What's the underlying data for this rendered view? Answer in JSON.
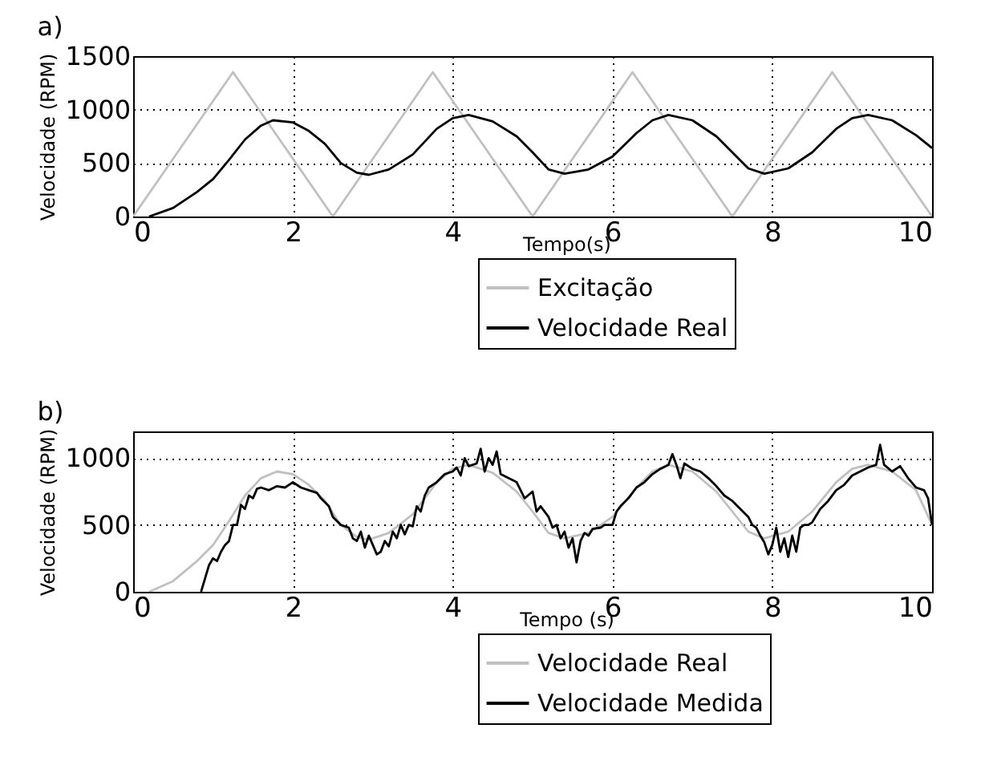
{
  "chart_data": [
    {
      "type": "line",
      "title": "a)",
      "xlabel": "Tempo(s)",
      "ylabel": "Velocidade (RPM)",
      "xlim": [
        0,
        10
      ],
      "xticks": [
        0,
        2,
        4,
        6,
        8,
        10
      ],
      "ylim": [
        0,
        1500
      ],
      "yticks": [
        0,
        500,
        1000,
        1500
      ],
      "grid": true,
      "legend": "bottom right",
      "series": [
        {
          "name": "Excitação",
          "color": "#c0c0c0",
          "x": [
            0,
            1.25,
            2.5,
            3.75,
            5,
            6.25,
            7.5,
            8.75,
            10
          ],
          "values": [
            0,
            1350,
            0,
            1350,
            0,
            1350,
            0,
            1350,
            0
          ]
        },
        {
          "name": "Velocidade Real",
          "color": "#000000",
          "x": [
            0.2,
            0.5,
            0.8,
            1.0,
            1.2,
            1.4,
            1.6,
            1.75,
            2.0,
            2.2,
            2.4,
            2.6,
            2.8,
            2.95,
            3.2,
            3.5,
            3.8,
            4.0,
            4.2,
            4.5,
            4.8,
            5.0,
            5.2,
            5.4,
            5.7,
            6.0,
            6.3,
            6.5,
            6.7,
            7.0,
            7.3,
            7.5,
            7.7,
            7.9,
            8.2,
            8.5,
            8.8,
            9.0,
            9.2,
            9.5,
            9.8,
            10
          ],
          "values": [
            0,
            80,
            230,
            350,
            530,
            720,
            850,
            900,
            880,
            800,
            680,
            500,
            410,
            390,
            440,
            580,
            820,
            920,
            950,
            890,
            750,
            600,
            440,
            400,
            440,
            560,
            780,
            900,
            950,
            900,
            750,
            600,
            450,
            400,
            450,
            600,
            820,
            920,
            950,
            900,
            760,
            640
          ]
        }
      ]
    },
    {
      "type": "line",
      "title": "b)",
      "xlabel": "Tempo (s)",
      "ylabel": "Velocidade (RPM)",
      "xlim": [
        0,
        10
      ],
      "xticks": [
        0,
        2,
        4,
        6,
        8,
        10
      ],
      "ylim": [
        0,
        1200
      ],
      "yticks": [
        0,
        500,
        1000
      ],
      "grid": true,
      "legend": "bottom right",
      "series": [
        {
          "name": "Velocidade Real",
          "color": "#c0c0c0",
          "x": [
            0.2,
            0.5,
            0.8,
            1.0,
            1.2,
            1.4,
            1.6,
            1.8,
            2.0,
            2.2,
            2.4,
            2.6,
            2.8,
            2.95,
            3.2,
            3.5,
            3.8,
            4.0,
            4.2,
            4.5,
            4.8,
            5.0,
            5.2,
            5.4,
            5.7,
            6.0,
            6.3,
            6.5,
            6.7,
            7.0,
            7.3,
            7.5,
            7.7,
            7.9,
            8.2,
            8.5,
            8.8,
            9.0,
            9.2,
            9.5,
            9.8,
            10
          ],
          "values": [
            0,
            80,
            230,
            350,
            530,
            720,
            850,
            900,
            880,
            800,
            680,
            500,
            410,
            390,
            440,
            580,
            820,
            920,
            950,
            890,
            750,
            600,
            440,
            400,
            440,
            560,
            780,
            900,
            950,
            900,
            750,
            600,
            450,
            400,
            450,
            600,
            820,
            920,
            950,
            900,
            760,
            500
          ]
        },
        {
          "name": "Velocidade Medida",
          "color": "#000000",
          "x": [
            0.85,
            0.9,
            0.95,
            1.0,
            1.05,
            1.1,
            1.15,
            1.2,
            1.25,
            1.3,
            1.35,
            1.4,
            1.45,
            1.5,
            1.55,
            1.6,
            1.7,
            1.8,
            1.9,
            2.0,
            2.1,
            2.2,
            2.3,
            2.35,
            2.45,
            2.5,
            2.6,
            2.7,
            2.75,
            2.8,
            2.85,
            2.9,
            2.95,
            3.0,
            3.05,
            3.1,
            3.15,
            3.2,
            3.25,
            3.3,
            3.35,
            3.4,
            3.45,
            3.5,
            3.55,
            3.6,
            3.65,
            3.7,
            3.8,
            3.9,
            4.0,
            4.05,
            4.1,
            4.15,
            4.2,
            4.3,
            4.35,
            4.4,
            4.45,
            4.5,
            4.55,
            4.6,
            4.7,
            4.8,
            4.9,
            5.0,
            5.05,
            5.1,
            5.2,
            5.25,
            5.3,
            5.35,
            5.4,
            5.45,
            5.5,
            5.55,
            5.6,
            5.65,
            5.7,
            5.75,
            5.85,
            5.9,
            6.0,
            6.05,
            6.1,
            6.2,
            6.3,
            6.4,
            6.5,
            6.6,
            6.7,
            6.75,
            6.8,
            6.85,
            6.9,
            7.0,
            7.1,
            7.2,
            7.3,
            7.4,
            7.5,
            7.6,
            7.7,
            7.75,
            7.8,
            7.85,
            7.9,
            7.95,
            8.0,
            8.05,
            8.1,
            8.15,
            8.2,
            8.25,
            8.3,
            8.35,
            8.4,
            8.45,
            8.5,
            8.6,
            8.7,
            8.8,
            8.9,
            9.0,
            9.1,
            9.2,
            9.3,
            9.35,
            9.4,
            9.5,
            9.6,
            9.7,
            9.8,
            9.9,
            9.95,
            10.0
          ],
          "values": [
            0,
            100,
            200,
            250,
            230,
            300,
            350,
            380,
            500,
            500,
            650,
            620,
            720,
            700,
            770,
            780,
            760,
            790,
            780,
            820,
            780,
            760,
            740,
            700,
            640,
            560,
            500,
            480,
            400,
            380,
            450,
            330,
            420,
            350,
            280,
            300,
            380,
            340,
            450,
            400,
            500,
            430,
            500,
            490,
            640,
            600,
            720,
            780,
            820,
            880,
            900,
            930,
            870,
            1000,
            940,
            960,
            1070,
            900,
            1000,
            950,
            1050,
            880,
            850,
            820,
            700,
            750,
            600,
            640,
            560,
            480,
            500,
            400,
            450,
            330,
            400,
            220,
            380,
            440,
            420,
            470,
            480,
            500,
            500,
            600,
            640,
            700,
            780,
            820,
            880,
            920,
            950,
            1030,
            950,
            850,
            960,
            920,
            900,
            850,
            790,
            720,
            680,
            620,
            560,
            500,
            480,
            420,
            370,
            280,
            350,
            480,
            300,
            400,
            260,
            420,
            300,
            480,
            500,
            500,
            520,
            620,
            680,
            760,
            800,
            870,
            900,
            930,
            950,
            1100,
            950,
            900,
            940,
            850,
            780,
            760,
            700,
            500
          ]
        }
      ]
    }
  ]
}
